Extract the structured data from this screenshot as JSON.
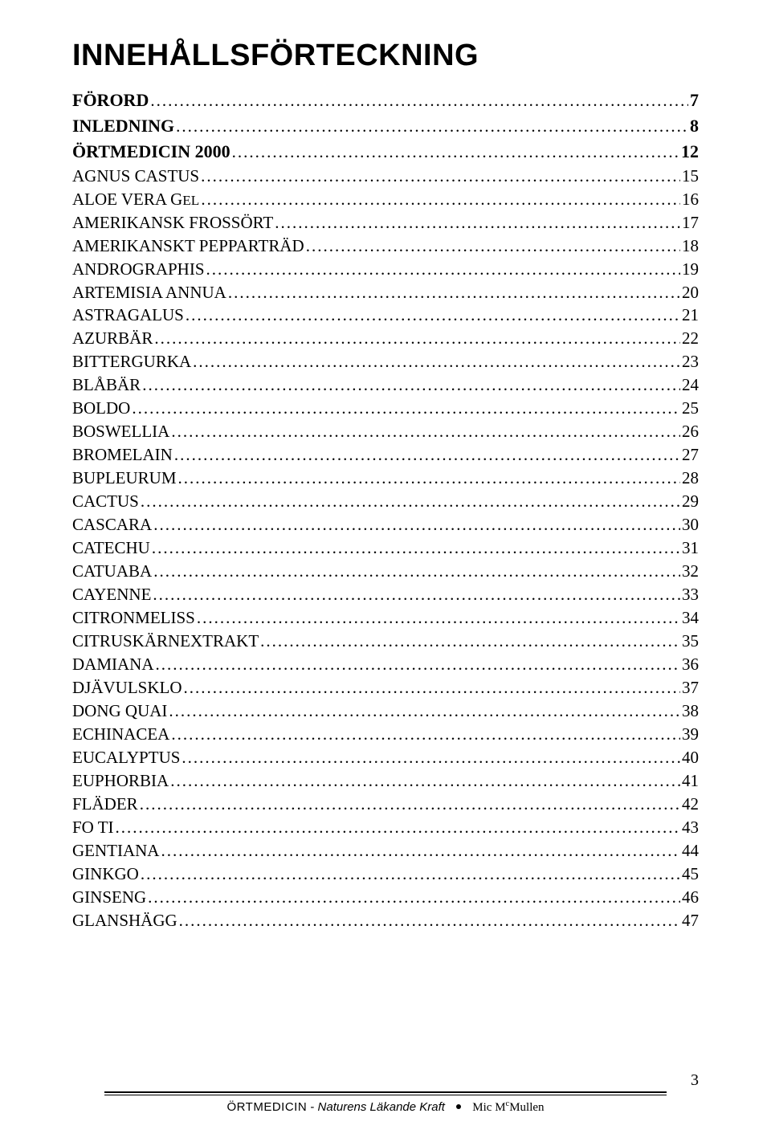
{
  "title": "INNEHÅLLSFÖRTECKNING",
  "sections": [
    {
      "label": "FÖRORD",
      "page": "7"
    },
    {
      "label": "INLEDNING",
      "page": "8"
    },
    {
      "label": "ÖRTMEDICIN 2000",
      "page": "12"
    }
  ],
  "entries": [
    {
      "label": "AGNUS CASTUS",
      "page": "15"
    },
    {
      "label_main": "ALOE VERA G",
      "label_small": "EL",
      "page": "16"
    },
    {
      "label": "AMERIKANSK FROSSÖRT",
      "page": "17"
    },
    {
      "label": "AMERIKANSKT PEPPARTRÄD",
      "page": "18"
    },
    {
      "label": "ANDROGRAPHIS",
      "page": "19"
    },
    {
      "label": "ARTEMISIA ANNUA",
      "page": "20"
    },
    {
      "label": "ASTRAGALUS",
      "page": "21"
    },
    {
      "label": "AZURBÄR",
      "page": "22"
    },
    {
      "label": "BITTERGURKA",
      "page": "23"
    },
    {
      "label": "BLÅBÄR",
      "page": "24"
    },
    {
      "label": "BOLDO",
      "page": "25"
    },
    {
      "label": "BOSWELLIA",
      "page": "26"
    },
    {
      "label": "BROMELAIN",
      "page": "27"
    },
    {
      "label": "BUPLEURUM",
      "page": "28"
    },
    {
      "label": "CACTUS",
      "page": "29"
    },
    {
      "label": "CASCARA",
      "page": "30"
    },
    {
      "label": "CATECHU",
      "page": "31"
    },
    {
      "label": "CATUABA",
      "page": "32"
    },
    {
      "label": "CAYENNE",
      "page": "33"
    },
    {
      "label": "CITRONMELISS",
      "page": "34"
    },
    {
      "label": "CITRUSKÄRNEXTRAKT",
      "page": "35"
    },
    {
      "label": "DAMIANA",
      "page": "36"
    },
    {
      "label": "DJÄVULSKLO",
      "page": "37"
    },
    {
      "label": "DONG QUAI",
      "page": "38"
    },
    {
      "label": "ECHINACEA",
      "page": "39"
    },
    {
      "label": "EUCALYPTUS",
      "page": "40"
    },
    {
      "label": "EUPHORBIA",
      "page": "41"
    },
    {
      "label": "FLÄDER",
      "page": "42"
    },
    {
      "label": "FO TI",
      "page": "43"
    },
    {
      "label": "GENTIANA",
      "page": "44"
    },
    {
      "label": "GINKGO",
      "page": "45"
    },
    {
      "label": "GINSENG",
      "page": "46"
    },
    {
      "label": "GLANSHÄGG",
      "page": "47"
    }
  ],
  "footer": {
    "page_number": "3",
    "book_title": "ÖRTMEDICIN",
    "separator": " - ",
    "subtitle": "Naturens Läkande Kraft",
    "author_pre": "Mic M",
    "author_sup": "c",
    "author_post": "Mullen"
  }
}
